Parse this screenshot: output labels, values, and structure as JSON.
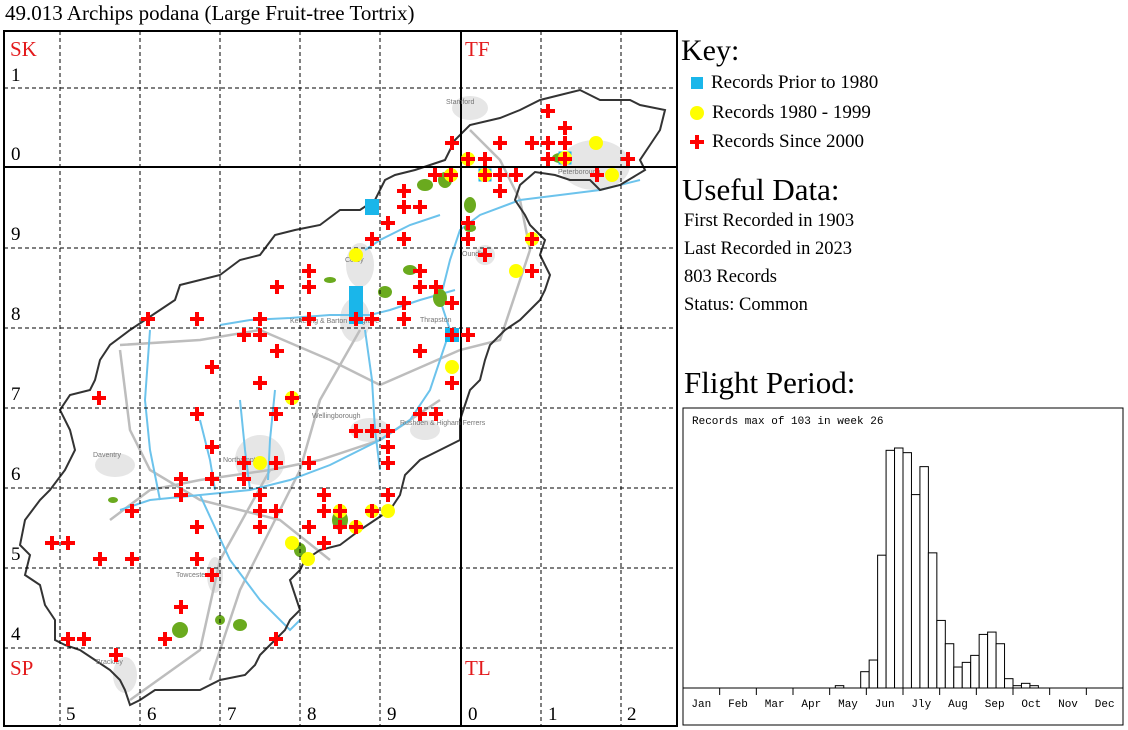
{
  "title": "49.013 Archips podana (Large Fruit-tree Tortrix)",
  "map": {
    "square_labels": [
      "SK",
      "TF",
      "SP",
      "TL"
    ],
    "row_labels": [
      "1",
      "0",
      "9",
      "8",
      "7",
      "6",
      "5",
      "4"
    ],
    "col_labels": [
      "5",
      "6",
      "7",
      "8",
      "9",
      "0",
      "1",
      "2"
    ],
    "place_labels": [
      "Stamford",
      "Peterborough",
      "Corby",
      "Oundle",
      "Kettering & Barton Seagrave",
      "Thrapston",
      "Wellingborough",
      "Rushden & Higham Ferrers",
      "Daventry",
      "Northampton",
      "Towcester",
      "Brackley"
    ],
    "colors": {
      "grid_label": "#e31a1c",
      "prior_1980": "#1ab6ea",
      "r1980_1999": "#ffff00",
      "since_2000": "#ff0000",
      "woodland": "#6aaa1e",
      "river": "#6cc3ec",
      "road": "#bdbdbd",
      "urban": "#e6e6e6"
    }
  },
  "key": {
    "title": "Key:",
    "items": [
      {
        "label": "Records Prior to 1980",
        "symbol": "square-icon"
      },
      {
        "label": "Records 1980 - 1999",
        "symbol": "circle-icon"
      },
      {
        "label": "Records Since 2000",
        "symbol": "cross-icon"
      }
    ]
  },
  "useful": {
    "title": "Useful Data:",
    "first": "First Recorded in 1903",
    "last": "Last Recorded in 2023",
    "count": "803 Records",
    "status": "Status: Common"
  },
  "flight": {
    "title": "Flight Period:"
  },
  "chart_data": {
    "type": "bar",
    "title": "Records max of 103 in week 26",
    "xlabel": "",
    "ylabel": "",
    "x_unit": "week",
    "month_labels": [
      "Jan",
      "Feb",
      "Mar",
      "Apr",
      "May",
      "Jun",
      "Jly",
      "Aug",
      "Sep",
      "Oct",
      "Nov",
      "Dec"
    ],
    "ylim": [
      0,
      103
    ],
    "values": [
      0,
      0,
      0,
      0,
      0,
      0,
      0,
      0,
      0,
      0,
      0,
      0,
      0,
      0,
      0,
      0,
      0,
      0,
      1,
      0,
      0,
      7,
      12,
      57,
      102,
      103,
      101,
      83,
      95,
      58,
      29,
      19,
      9,
      11,
      14,
      23,
      24,
      19,
      4,
      1,
      2,
      1,
      0,
      0,
      0,
      0,
      0,
      0,
      0,
      0,
      0,
      0
    ]
  }
}
